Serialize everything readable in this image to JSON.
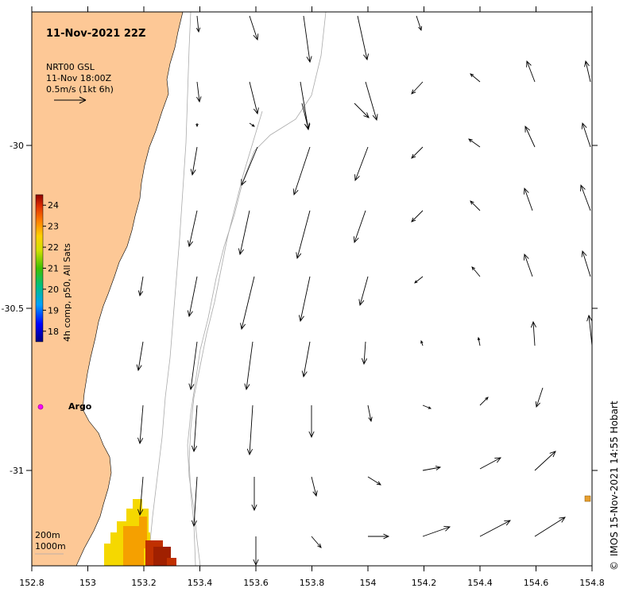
{
  "title": "11-Nov-2021 22Z",
  "product": {
    "line1": "NRT00 GSL",
    "line2": "11-Nov 18:00Z",
    "line3": "0.5m/s (1kt 6h)"
  },
  "colorbar": {
    "label": "4h comp, p50, All Sats",
    "ticks": [
      "24",
      "23",
      "22",
      "21",
      "20",
      "19",
      "18"
    ],
    "min": 17.5,
    "max": 24.5
  },
  "argo_label": "Argo",
  "depth_legend": {
    "line1": "200m",
    "line2": "1000m"
  },
  "credit": "IMOS 15-Nov-2021 14:55 Hobart",
  "copyright_symbol": "©",
  "colors": {
    "land": "#fdc896",
    "argo": "#ff00ff",
    "sst_yellow": "#f5d800",
    "sst_orange": "#f5a000",
    "sst_red": "#c03000",
    "sst_darkred": "#a02000",
    "contour": "#aaaaaa"
  },
  "axes": {
    "x_ticks": [
      "152.8",
      "153",
      "153.2",
      "153.4",
      "153.6",
      "153.8",
      "154",
      "154.2",
      "154.4",
      "154.6",
      "154.8"
    ],
    "y_ticks": [
      "-30",
      "-30.5",
      "-31"
    ]
  }
}
